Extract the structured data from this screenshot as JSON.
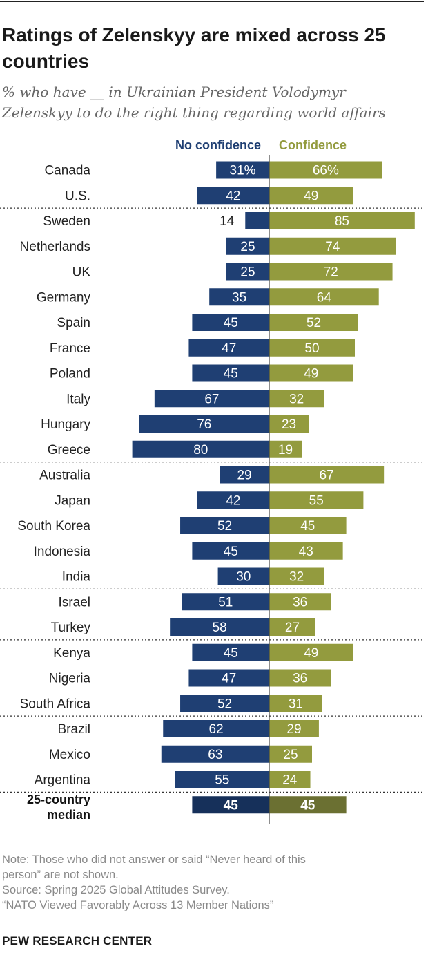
{
  "header": {
    "title": "Ratings of Zelenskyy are mixed across 25 countries",
    "subtitle": "% who have __ in Ukrainian President Volodymyr Zelenskyy to do the right thing regarding world affairs"
  },
  "chart_data": {
    "type": "bar",
    "orientation": "horizontal-diverging",
    "categories": [
      "Canada",
      "U.S.",
      "Sweden",
      "Netherlands",
      "UK",
      "Germany",
      "Spain",
      "France",
      "Poland",
      "Italy",
      "Hungary",
      "Greece",
      "Australia",
      "Japan",
      "South Korea",
      "Indonesia",
      "India",
      "Israel",
      "Turkey",
      "Kenya",
      "Nigeria",
      "South Africa",
      "Brazil",
      "Mexico",
      "Argentina",
      "25-country median"
    ],
    "series": [
      {
        "name": "No confidence",
        "color": "#1f3f73",
        "values": [
          31,
          42,
          14,
          25,
          25,
          35,
          45,
          47,
          45,
          67,
          76,
          80,
          29,
          42,
          52,
          45,
          30,
          51,
          58,
          45,
          47,
          52,
          62,
          63,
          55,
          45
        ]
      },
      {
        "name": "Confidence",
        "color": "#939b3e",
        "values": [
          66,
          49,
          85,
          74,
          72,
          64,
          52,
          50,
          49,
          32,
          23,
          19,
          67,
          55,
          45,
          43,
          32,
          36,
          27,
          49,
          36,
          31,
          29,
          25,
          24,
          45
        ]
      }
    ],
    "value_labels": [
      "31%",
      "42",
      "14",
      "25",
      "25",
      "35",
      "45",
      "47",
      "45",
      "67",
      "76",
      "80",
      "29",
      "42",
      "52",
      "45",
      "30",
      "51",
      "58",
      "45",
      "47",
      "52",
      "62",
      "63",
      "55",
      "45"
    ],
    "value_labels_right": [
      "66%",
      "49",
      "85",
      "74",
      "72",
      "64",
      "52",
      "50",
      "49",
      "32",
      "23",
      "19",
      "67",
      "55",
      "45",
      "43",
      "32",
      "36",
      "27",
      "49",
      "36",
      "31",
      "29",
      "25",
      "24",
      "45"
    ],
    "median_colors": {
      "no_confidence": "#16305a",
      "confidence": "#6b7032"
    },
    "group_separators_after": [
      "U.S.",
      "Greece",
      "India",
      "Turkey",
      "South Africa",
      "Argentina"
    ],
    "legend_placement": "top"
  },
  "footer": {
    "note_line1": "Note: Those who did not answer or said “Never heard of this",
    "note_line2": "person” are not shown.",
    "source_line1": "Source: Spring 2025 Global Attitudes Survey.",
    "source_line2": "“NATO Viewed Favorably Across 13 Member Nations”",
    "brand": "PEW RESEARCH CENTER"
  }
}
